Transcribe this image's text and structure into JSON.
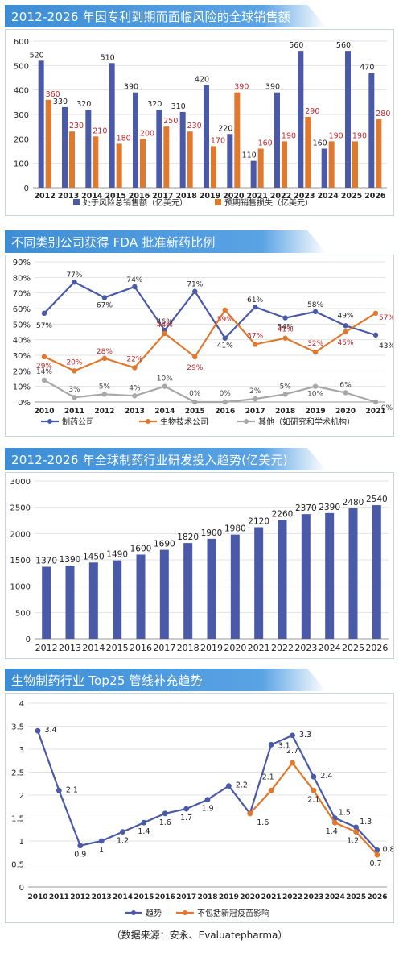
{
  "source_note": "（数据来源：安永、Evaluatepharma）",
  "chart_data": [
    {
      "type": "bar",
      "title": "2012-2026 年因专利到期而面临风险的全球销售额",
      "categories": [
        "2012",
        "2013",
        "2014",
        "2015",
        "2016",
        "2017",
        "2018",
        "2019",
        "2020",
        "2021",
        "2022",
        "2023",
        "2024",
        "2025",
        "2026"
      ],
      "series": [
        {
          "name": "处于风险总销售额（亿美元）",
          "color": "#4a5aa8",
          "values": [
            520,
            330,
            320,
            510,
            390,
            320,
            310,
            420,
            220,
            110,
            390,
            560,
            160,
            560,
            470
          ]
        },
        {
          "name": "预期销售损失（亿美元）",
          "color": "#e0782e",
          "values": [
            360,
            230,
            210,
            180,
            200,
            250,
            230,
            170,
            390,
            160,
            190,
            290,
            190,
            190,
            280
          ]
        }
      ],
      "yticks": [
        "0",
        "100",
        "200",
        "300",
        "400",
        "500",
        "600"
      ],
      "ylim": [
        0,
        600
      ]
    },
    {
      "type": "line",
      "title": "不同类别公司获得 FDA 批准新药比例",
      "categories": [
        "2010",
        "2011",
        "2012",
        "2013",
        "2014",
        "2015",
        "2016",
        "2017",
        "2018",
        "2019",
        "2020",
        "2021"
      ],
      "series": [
        {
          "name": "制药公司",
          "color": "#4a5aa8",
          "values": [
            57,
            77,
            67,
            74,
            46,
            71,
            41,
            61,
            54,
            58,
            49,
            43
          ],
          "labels": [
            "57%",
            "77%",
            "67%",
            "74%",
            "46%",
            "71%",
            "41%",
            "61%",
            "54%",
            "58%",
            "49%",
            "43%"
          ]
        },
        {
          "name": "生物技术公司",
          "color": "#e0782e",
          "values": [
            29,
            20,
            28,
            22,
            44,
            29,
            59,
            37,
            41,
            32,
            45,
            57
          ],
          "labels": [
            "29%",
            "20%",
            "28%",
            "22%",
            "44%",
            "29%",
            "59%",
            "37%",
            "41%",
            "32%",
            "45%",
            "57%"
          ]
        },
        {
          "name": "其他（如研究和学术机构）",
          "color": "#a8a8a8",
          "values": [
            14,
            3,
            5,
            4,
            10,
            0,
            0,
            2,
            5,
            10,
            6,
            0
          ],
          "labels": [
            "14%",
            "3%",
            "5%",
            "4%",
            "10%",
            "0%",
            "0%",
            "2%",
            "5%",
            "10%",
            "6%",
            "0%"
          ]
        }
      ],
      "yticks": [
        "0%",
        "10%",
        "20%",
        "30%",
        "40%",
        "50%",
        "60%",
        "70%",
        "80%",
        "90%"
      ],
      "ylim": [
        0,
        90
      ]
    },
    {
      "type": "bar",
      "title": "2012-2026  年全球制药行业研发投入趋势(亿美元)",
      "categories": [
        "2012",
        "2013",
        "2014",
        "2015",
        "2016",
        "2017",
        "2018",
        "2019",
        "2020",
        "2021",
        "2022",
        "2023",
        "2024",
        "2025",
        "2026"
      ],
      "series": [
        {
          "name": "",
          "color": "#4a5aa8",
          "values": [
            1370,
            1390,
            1450,
            1490,
            1600,
            1690,
            1820,
            1900,
            1980,
            2120,
            2260,
            2370,
            2390,
            2480,
            2540
          ]
        }
      ],
      "yticks": [
        "0",
        "500",
        "1000",
        "1500",
        "2000",
        "2500",
        "3000"
      ],
      "ylim": [
        0,
        3000
      ]
    },
    {
      "type": "line",
      "title": "生物制药行业 Top25 管线补充趋势",
      "categories": [
        "2010",
        "2011",
        "2012",
        "2013",
        "2014",
        "2015",
        "2016",
        "2017",
        "2018",
        "2019",
        "2020",
        "2021",
        "2022",
        "2023",
        "2024",
        "2025",
        "2026"
      ],
      "series": [
        {
          "name": "趋势",
          "color": "#4a5aa8",
          "values": [
            3.4,
            2.1,
            0.9,
            1.0,
            1.2,
            1.4,
            1.6,
            1.7,
            1.9,
            2.2,
            1.6,
            3.1,
            3.3,
            2.4,
            1.5,
            1.3,
            0.8
          ],
          "labels": [
            "3.4",
            "2.1",
            "0.9",
            "1",
            "1.2",
            "1.4",
            "1.6",
            "1.7",
            "1.9",
            "2.2",
            "1.6",
            "3.1",
            "3.3",
            "2.4",
            "1.5",
            "1.3",
            "0.8"
          ]
        },
        {
          "name": "不包括新冠疫苗影响",
          "color": "#e0782e",
          "values": [
            null,
            null,
            null,
            null,
            null,
            null,
            null,
            null,
            null,
            null,
            1.6,
            2.1,
            2.7,
            2.1,
            1.4,
            1.2,
            0.7
          ],
          "labels": [
            "",
            "",
            "",
            "",
            "",
            "",
            "",
            "",
            "",
            "",
            "",
            "2.1",
            "2.7",
            "2.1",
            "1.4",
            "1.2",
            "0.7"
          ]
        }
      ],
      "yticks": [
        "0",
        "0.5",
        "1",
        "1.5",
        "2",
        "2.5",
        "3",
        "3.5",
        "4"
      ],
      "ylim": [
        0,
        4
      ]
    }
  ]
}
